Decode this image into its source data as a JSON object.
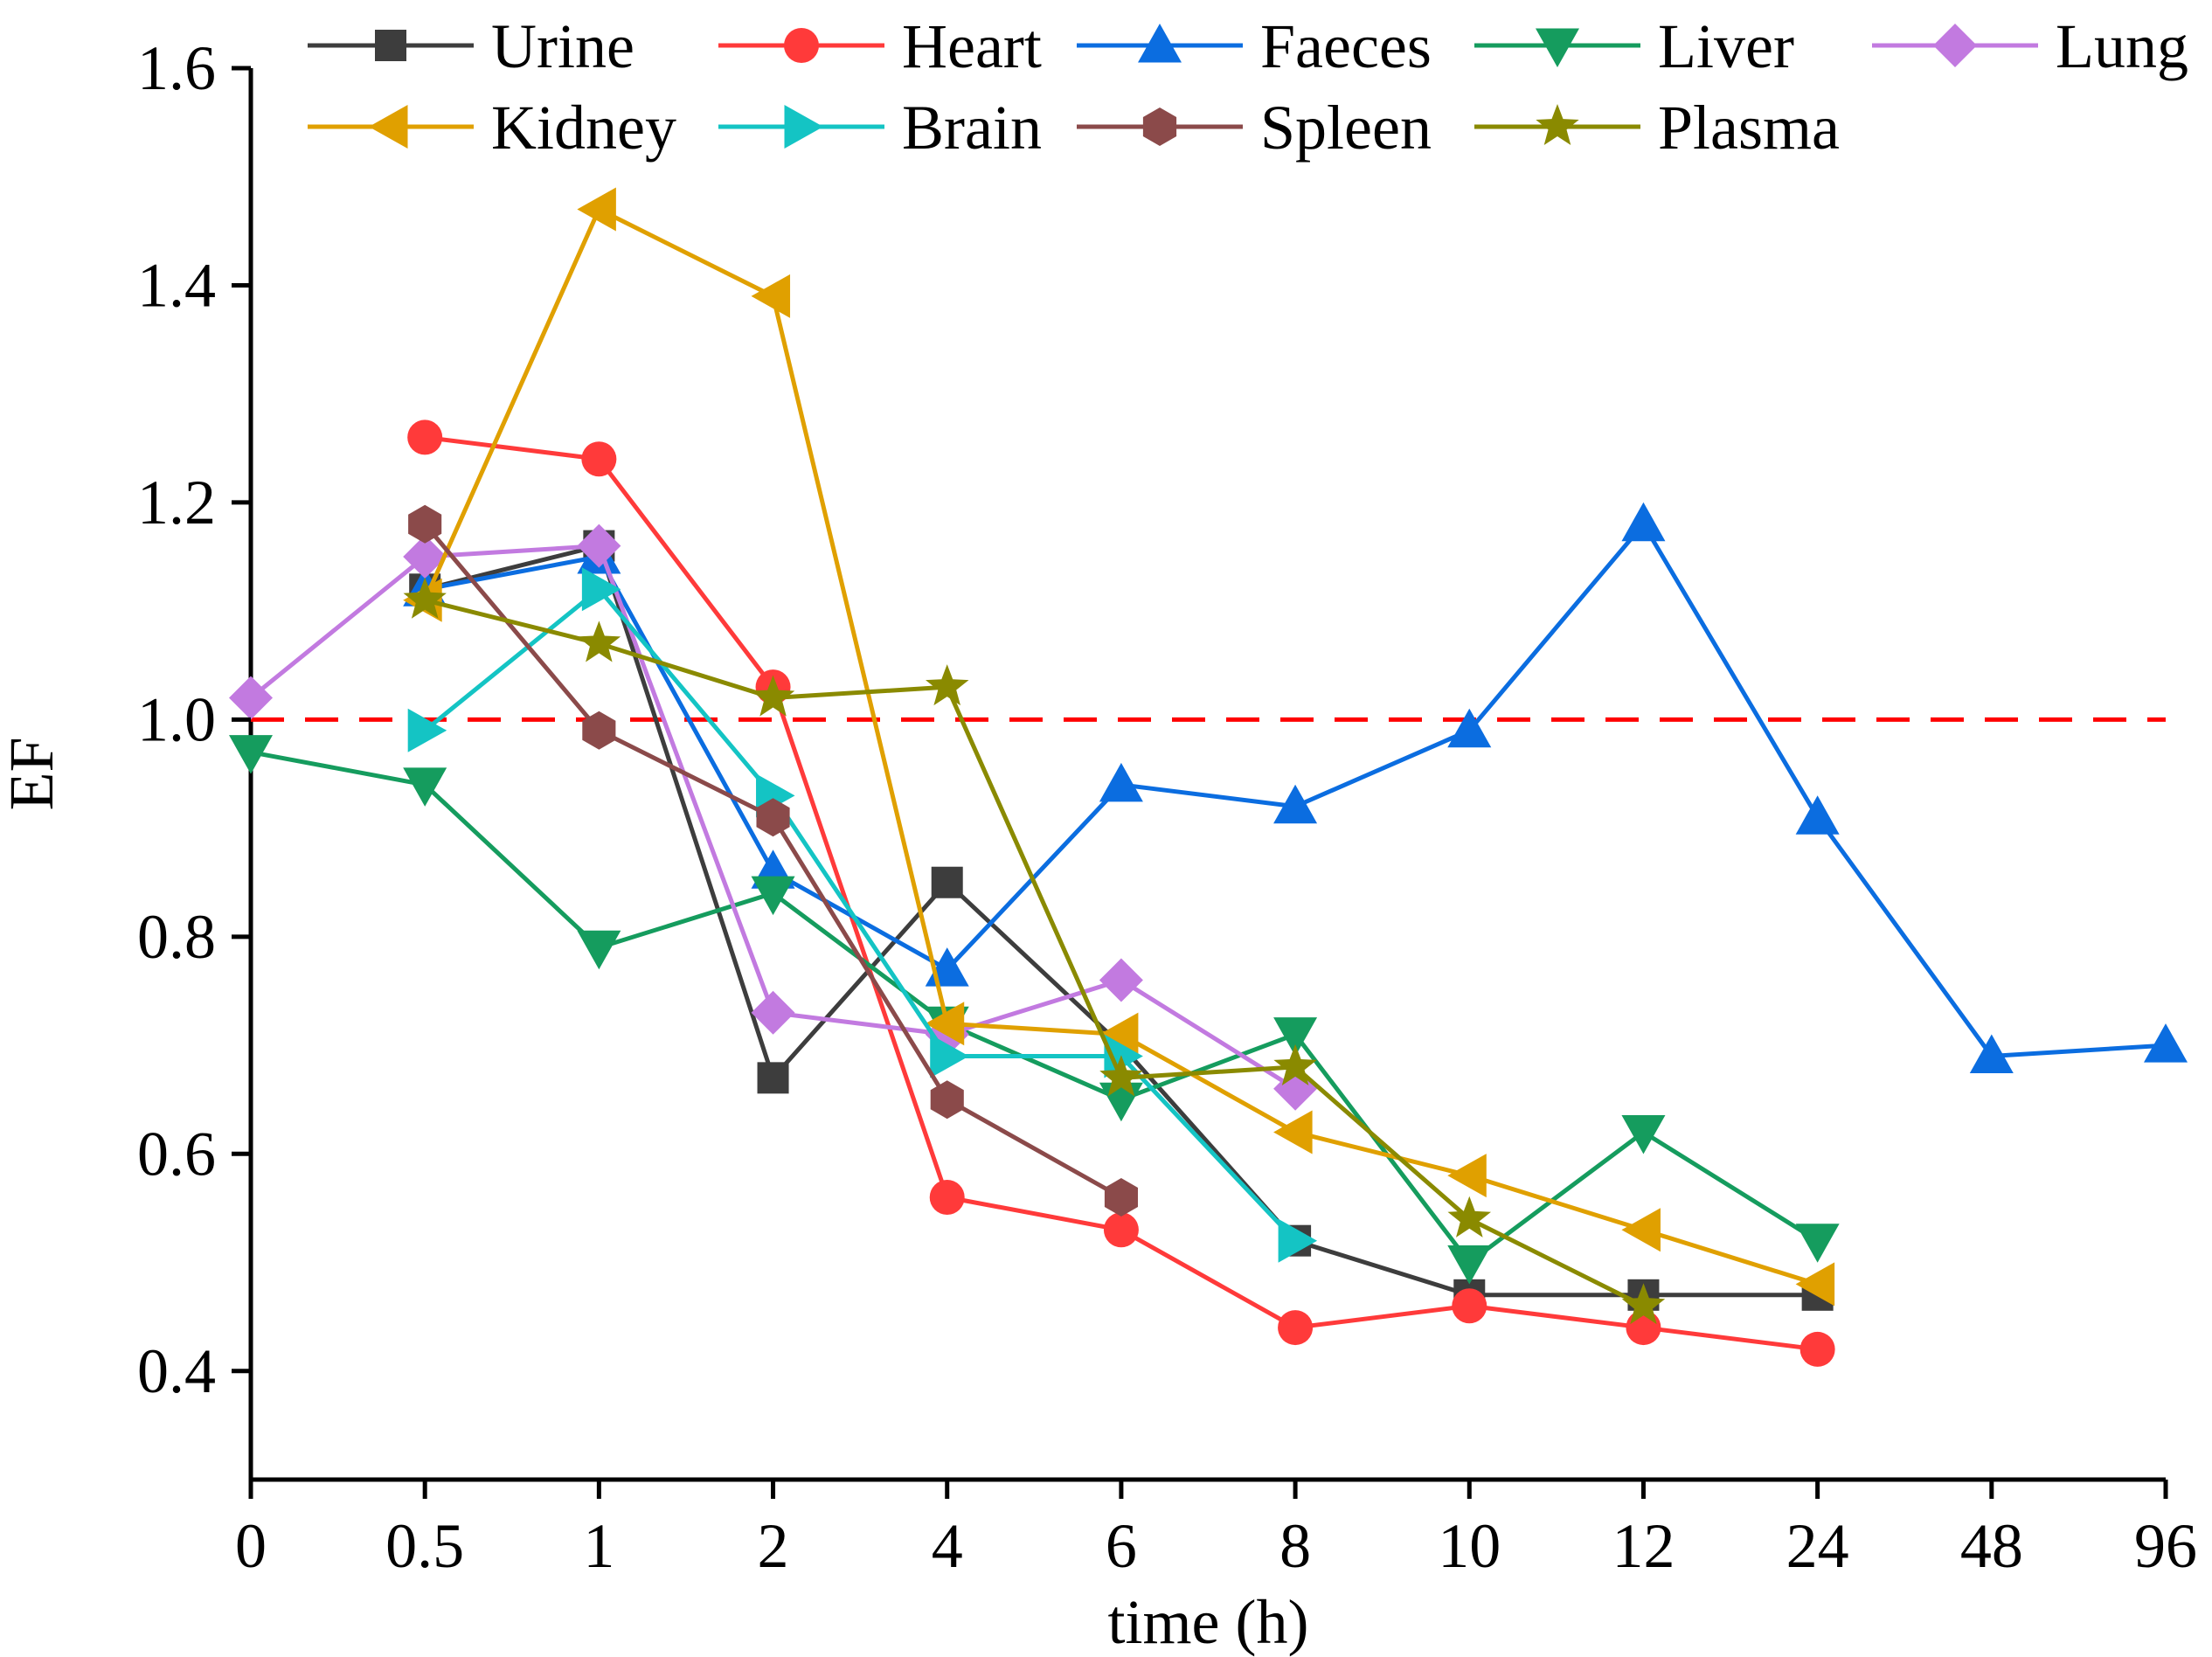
{
  "chart_data": {
    "type": "line",
    "title": "",
    "xlabel": "time (h)",
    "ylabel": "EF",
    "categories": [
      "0",
      "0.5",
      "1",
      "2",
      "4",
      "6",
      "8",
      "10",
      "12",
      "24",
      "48",
      "96"
    ],
    "ylim": [
      0.3,
      1.6
    ],
    "yticks": [
      "0.4",
      "0.6",
      "0.8",
      "1.0",
      "1.2",
      "1.4",
      "1.6"
    ],
    "ytick_values": [
      0.4,
      0.6,
      0.8,
      1.0,
      1.2,
      1.4,
      1.6
    ],
    "reference_line": {
      "y": 1.0,
      "color": "#ff0000",
      "style": "dashed"
    },
    "legend_position": "top",
    "series": [
      {
        "name": "Urine",
        "color": "#3d3d3d",
        "marker": "square",
        "values": [
          null,
          1.12,
          1.16,
          0.67,
          0.85,
          0.7,
          0.52,
          0.47,
          0.47,
          0.47,
          null,
          null
        ]
      },
      {
        "name": "Heart",
        "color": "#ff3a3a",
        "marker": "circle",
        "values": [
          null,
          1.26,
          1.24,
          1.03,
          0.56,
          0.53,
          0.44,
          0.46,
          0.44,
          0.42,
          null,
          null
        ]
      },
      {
        "name": "Faeces",
        "color": "#0b6de0",
        "marker": "triangle-up",
        "values": [
          null,
          1.12,
          1.15,
          0.86,
          0.77,
          0.94,
          0.92,
          0.99,
          1.18,
          0.91,
          0.69,
          0.7
        ]
      },
      {
        "name": "Liver",
        "color": "#159c5e",
        "marker": "triangle-down",
        "values": [
          0.97,
          0.94,
          0.79,
          0.84,
          0.72,
          0.65,
          0.71,
          0.5,
          0.62,
          0.52,
          null,
          null
        ]
      },
      {
        "name": "Lung",
        "color": "#c27ae0",
        "marker": "diamond",
        "values": [
          1.02,
          1.15,
          1.16,
          0.73,
          0.71,
          0.76,
          0.66,
          null,
          null,
          null,
          null,
          null
        ]
      },
      {
        "name": "Kidney",
        "color": "#e0a000",
        "marker": "triangle-left",
        "values": [
          null,
          1.11,
          1.47,
          1.39,
          0.72,
          0.71,
          0.62,
          0.58,
          0.53,
          0.48,
          null,
          null
        ]
      },
      {
        "name": "Brain",
        "color": "#14c4c4",
        "marker": "triangle-right",
        "values": [
          null,
          0.99,
          1.12,
          0.93,
          0.69,
          0.69,
          0.52,
          null,
          null,
          null,
          null,
          null
        ]
      },
      {
        "name": "Spleen",
        "color": "#8b4a4a",
        "marker": "hexagon",
        "values": [
          null,
          1.18,
          0.99,
          0.91,
          0.65,
          0.56,
          null,
          null,
          null,
          null,
          null,
          null
        ]
      },
      {
        "name": "Plasma",
        "color": "#8a8a00",
        "marker": "star",
        "values": [
          null,
          1.11,
          1.07,
          1.02,
          1.03,
          0.67,
          0.68,
          0.54,
          0.46,
          null,
          null,
          null
        ]
      }
    ]
  }
}
